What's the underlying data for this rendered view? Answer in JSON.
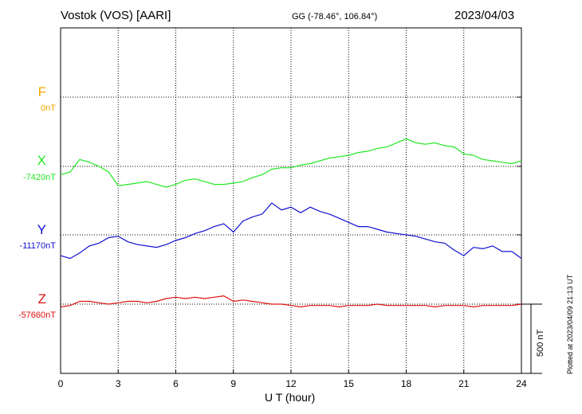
{
  "header": {
    "station": "Vostok (VOS)  [AARI]",
    "coords": "GG (-78.46°, 106.84°)",
    "date": "2023/04/03"
  },
  "components": [
    {
      "name": "F",
      "baseline": "0nT",
      "color": "#f0a800"
    },
    {
      "name": "X",
      "baseline": "-7420nT",
      "color": "#22e822"
    },
    {
      "name": "Y",
      "baseline": "-11170nT",
      "color": "#1010d0"
    },
    {
      "name": "Z",
      "baseline": "-57660nT",
      "color": "#e01010"
    }
  ],
  "scale": {
    "label": "500 nT"
  },
  "footer": {
    "plotted": "Plotted at 2023/04/09 21:13 UT"
  },
  "chart_data": {
    "type": "line",
    "xlabel": "U T (hour)",
    "xlim": [
      0,
      24
    ],
    "xticks": [
      "0",
      "3",
      "6",
      "9",
      "12",
      "15",
      "18",
      "21",
      "24"
    ],
    "grid": true,
    "series": [
      {
        "name": "F",
        "color": "#f0a800",
        "x": [],
        "y": []
      },
      {
        "name": "X",
        "color": "#22e822",
        "x": [
          0,
          0.5,
          1,
          1.5,
          2,
          2.5,
          3,
          3.5,
          4,
          4.5,
          5,
          5.5,
          6,
          6.5,
          7,
          7.5,
          8,
          8.5,
          9,
          9.5,
          10,
          10.5,
          11,
          11.5,
          12,
          12.5,
          13,
          13.5,
          14,
          14.5,
          15,
          15.5,
          16,
          16.5,
          17,
          17.5,
          18,
          18.5,
          19,
          19.5,
          20,
          20.5,
          21,
          21.5,
          22,
          22.5,
          23,
          23.5,
          24
        ],
        "y": [
          -60,
          -40,
          50,
          30,
          0,
          -40,
          -140,
          -130,
          -120,
          -110,
          -130,
          -150,
          -130,
          -100,
          -90,
          -110,
          -130,
          -130,
          -120,
          -110,
          -80,
          -60,
          -20,
          -10,
          -10,
          10,
          20,
          40,
          60,
          70,
          80,
          100,
          110,
          130,
          140,
          170,
          200,
          170,
          160,
          170,
          150,
          140,
          90,
          80,
          50,
          40,
          30,
          20,
          40
        ]
      },
      {
        "name": "Y",
        "color": "#1010d0",
        "x": [
          0,
          0.5,
          1,
          1.5,
          2,
          2.5,
          3,
          3.5,
          4,
          4.5,
          5,
          5.5,
          6,
          6.5,
          7,
          7.5,
          8,
          8.5,
          9,
          9.5,
          10,
          10.5,
          11,
          11.5,
          12,
          12.5,
          13,
          13.5,
          14,
          14.5,
          15,
          15.5,
          16,
          16.5,
          17,
          17.5,
          18,
          18.5,
          19,
          19.5,
          20,
          20.5,
          21,
          21.5,
          22,
          22.5,
          23,
          23.5,
          24
        ],
        "y": [
          -150,
          -170,
          -130,
          -80,
          -60,
          -20,
          -10,
          -50,
          -70,
          -80,
          -90,
          -70,
          -40,
          -20,
          10,
          30,
          60,
          80,
          20,
          100,
          130,
          150,
          230,
          180,
          200,
          160,
          200,
          170,
          150,
          120,
          90,
          60,
          60,
          40,
          20,
          10,
          0,
          -10,
          -30,
          -50,
          -60,
          -110,
          -150,
          -90,
          -100,
          -80,
          -120,
          -120,
          -170
        ]
      },
      {
        "name": "Z",
        "color": "#e01010",
        "x": [
          0,
          0.5,
          1,
          1.5,
          2,
          2.5,
          3,
          3.5,
          4,
          4.5,
          5,
          5.5,
          6,
          6.5,
          7,
          7.5,
          8,
          8.5,
          9,
          9.5,
          10,
          10.5,
          11,
          11.5,
          12,
          12.5,
          13,
          13.5,
          14,
          14.5,
          15,
          15.5,
          16,
          16.5,
          17,
          17.5,
          18,
          18.5,
          19,
          19.5,
          20,
          20.5,
          21,
          21.5,
          22,
          22.5,
          23,
          23.5,
          24
        ],
        "y": [
          -20,
          -10,
          20,
          20,
          10,
          0,
          10,
          20,
          20,
          10,
          20,
          40,
          50,
          40,
          50,
          40,
          50,
          60,
          20,
          30,
          20,
          10,
          0,
          0,
          -10,
          -20,
          -10,
          -10,
          -10,
          -20,
          -10,
          -10,
          -10,
          0,
          -10,
          -10,
          -10,
          -10,
          -10,
          -20,
          -10,
          -10,
          -10,
          -20,
          -10,
          -10,
          -10,
          -10,
          0
        ]
      }
    ]
  }
}
